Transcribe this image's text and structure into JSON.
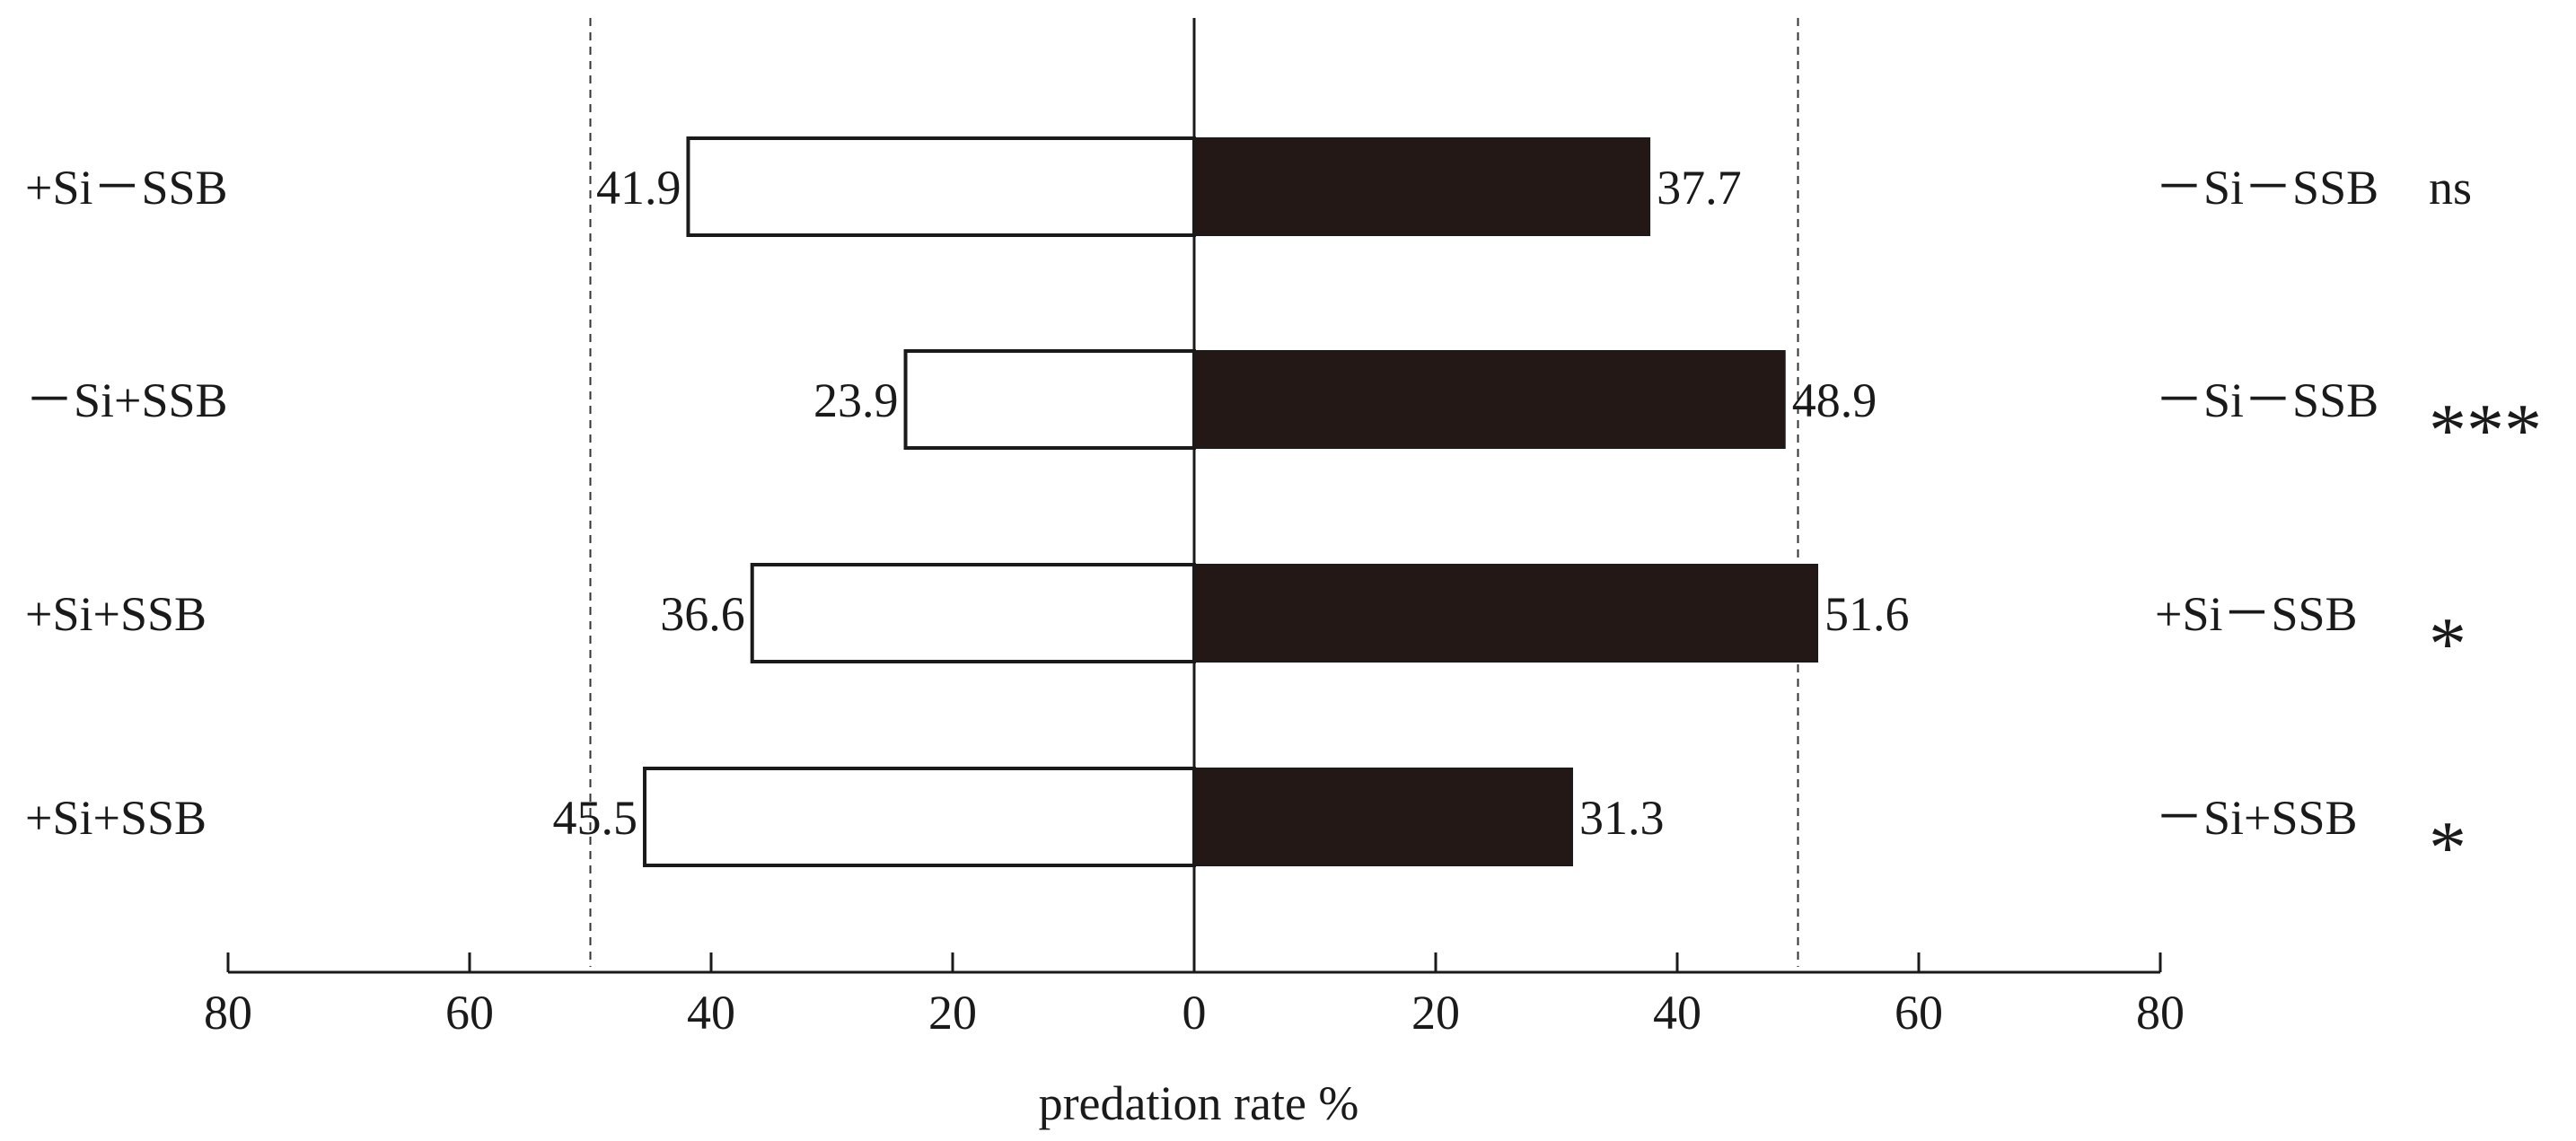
{
  "chart_data": {
    "type": "bar",
    "orientation": "horizontal-diverging",
    "xlabel": "predation rate %",
    "xlim": [
      -80,
      80
    ],
    "x_ticks": [
      -80,
      -60,
      -40,
      -20,
      0,
      20,
      40,
      60,
      80
    ],
    "x_tick_labels": [
      "80",
      "60",
      "40",
      "20",
      "0",
      "20",
      "40",
      "60",
      "80"
    ],
    "reference_lines": [
      -50,
      50
    ],
    "rows": [
      {
        "left_label": "+Si－SSB",
        "left_value": 41.9,
        "left_text": "41.9",
        "right_label": "－Si－SSB",
        "right_value": 37.7,
        "right_text": "37.7",
        "significance": "ns"
      },
      {
        "left_label": "－Si+SSB",
        "left_value": 23.9,
        "left_text": "23.9",
        "right_label": "－Si－SSB",
        "right_value": 48.9,
        "right_text": "48.9",
        "significance": "***"
      },
      {
        "left_label": "+Si+SSB",
        "left_value": 36.6,
        "left_text": "36.6",
        "right_label": "+Si－SSB",
        "right_value": 51.6,
        "right_text": "51.6",
        "significance": "*"
      },
      {
        "left_label": "+Si+SSB",
        "left_value": 45.5,
        "left_text": "45.5",
        "right_label": "－Si+SSB",
        "right_value": 31.3,
        "right_text": "31.3",
        "significance": "*"
      }
    ],
    "colors": {
      "left_fill": "#ffffff",
      "right_fill": "#231815",
      "stroke": "#1a1a1a"
    }
  }
}
